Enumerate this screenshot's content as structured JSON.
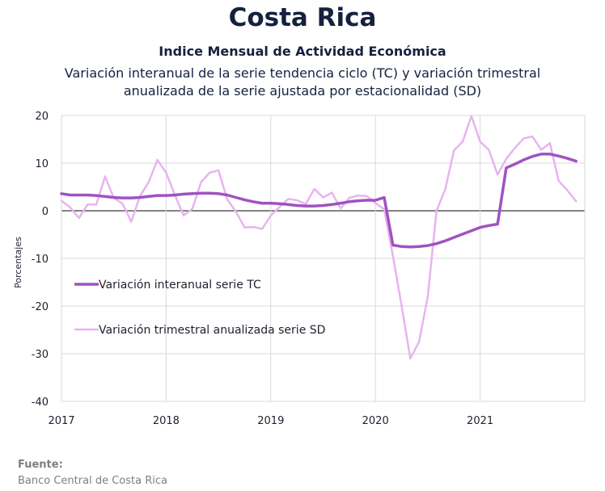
{
  "header": {
    "title": "Costa Rica",
    "subtitle": "Indice Mensual de  Actividad Económica",
    "description_line1": "Variación interanual de la serie tendencia ciclo (TC) y variación trimestral",
    "description_line2": "anualizada de la serie ajustada por estacionalidad (SD)"
  },
  "source": {
    "label": "Fuente:",
    "value": "Banco Central de Costa Rica"
  },
  "colors": {
    "tc": "#a052c0",
    "sd": "#e7b4ef",
    "grid": "#d9d9d9",
    "zero": "#595959"
  },
  "chart_data": {
    "type": "line",
    "ylabel": "Porcentajes",
    "ylim": [
      -40,
      20
    ],
    "yticks": [
      20,
      10,
      0,
      -10,
      -20,
      -30,
      -40
    ],
    "xlim": [
      "2017-01",
      "2022-01"
    ],
    "xticks": [
      "2017",
      "2018",
      "2019",
      "2020",
      "2021"
    ],
    "grid": true,
    "legend_position": "left-center",
    "x": [
      "2017-01",
      "2017-02",
      "2017-03",
      "2017-04",
      "2017-05",
      "2017-06",
      "2017-07",
      "2017-08",
      "2017-09",
      "2017-10",
      "2017-11",
      "2017-12",
      "2018-01",
      "2018-02",
      "2018-03",
      "2018-04",
      "2018-05",
      "2018-06",
      "2018-07",
      "2018-08",
      "2018-09",
      "2018-10",
      "2018-11",
      "2018-12",
      "2019-01",
      "2019-02",
      "2019-03",
      "2019-04",
      "2019-05",
      "2019-06",
      "2019-07",
      "2019-08",
      "2019-09",
      "2019-10",
      "2019-11",
      "2019-12",
      "2020-01",
      "2020-02",
      "2020-03",
      "2020-04",
      "2020-05",
      "2020-06",
      "2020-07",
      "2020-08",
      "2020-09",
      "2020-10",
      "2020-11",
      "2020-12",
      "2021-01",
      "2021-02",
      "2021-03",
      "2021-04",
      "2021-05",
      "2021-06",
      "2021-07",
      "2021-08",
      "2021-09",
      "2021-10",
      "2021-11",
      "2021-12"
    ],
    "series": [
      {
        "name": "Variación interanual serie TC",
        "values": [
          3.6,
          3.3,
          3.3,
          3.3,
          3.2,
          3.0,
          2.8,
          2.7,
          2.7,
          2.8,
          3.0,
          3.2,
          3.2,
          3.3,
          3.5,
          3.6,
          3.7,
          3.7,
          3.6,
          3.3,
          2.8,
          2.3,
          1.9,
          1.6,
          1.6,
          1.5,
          1.3,
          1.1,
          1.0,
          1.0,
          1.1,
          1.3,
          1.6,
          1.9,
          2.1,
          2.2,
          2.2,
          2.8,
          -7.2,
          -7.5,
          -7.6,
          -7.5,
          -7.3,
          -6.9,
          -6.3,
          -5.6,
          -4.9,
          -4.2,
          -3.5,
          -3.1,
          -2.8,
          9.0,
          9.8,
          10.7,
          11.4,
          11.9,
          11.9,
          11.5,
          11.0,
          10.4
        ]
      },
      {
        "name": "Variación trimestral anualizada serie SD",
        "values": [
          2.1,
          0.7,
          -1.5,
          1.3,
          1.3,
          7.2,
          2.7,
          1.5,
          -2.3,
          3.1,
          6.0,
          10.7,
          8.0,
          3.3,
          -1.0,
          0.4,
          6.0,
          8.0,
          8.5,
          2.4,
          -0.2,
          -3.5,
          -3.4,
          -3.8,
          -1.0,
          0.8,
          2.5,
          2.2,
          1.4,
          4.6,
          2.8,
          3.8,
          0.5,
          2.7,
          3.2,
          3.1,
          1.6,
          0.3,
          -9.5,
          -20.0,
          -31.0,
          -27.5,
          -18.0,
          0.0,
          4.5,
          12.7,
          14.5,
          19.9,
          14.5,
          12.8,
          7.6,
          10.9,
          13.2,
          15.2,
          15.6,
          12.8,
          14.2,
          6.3,
          4.3,
          2.0
        ]
      }
    ]
  }
}
